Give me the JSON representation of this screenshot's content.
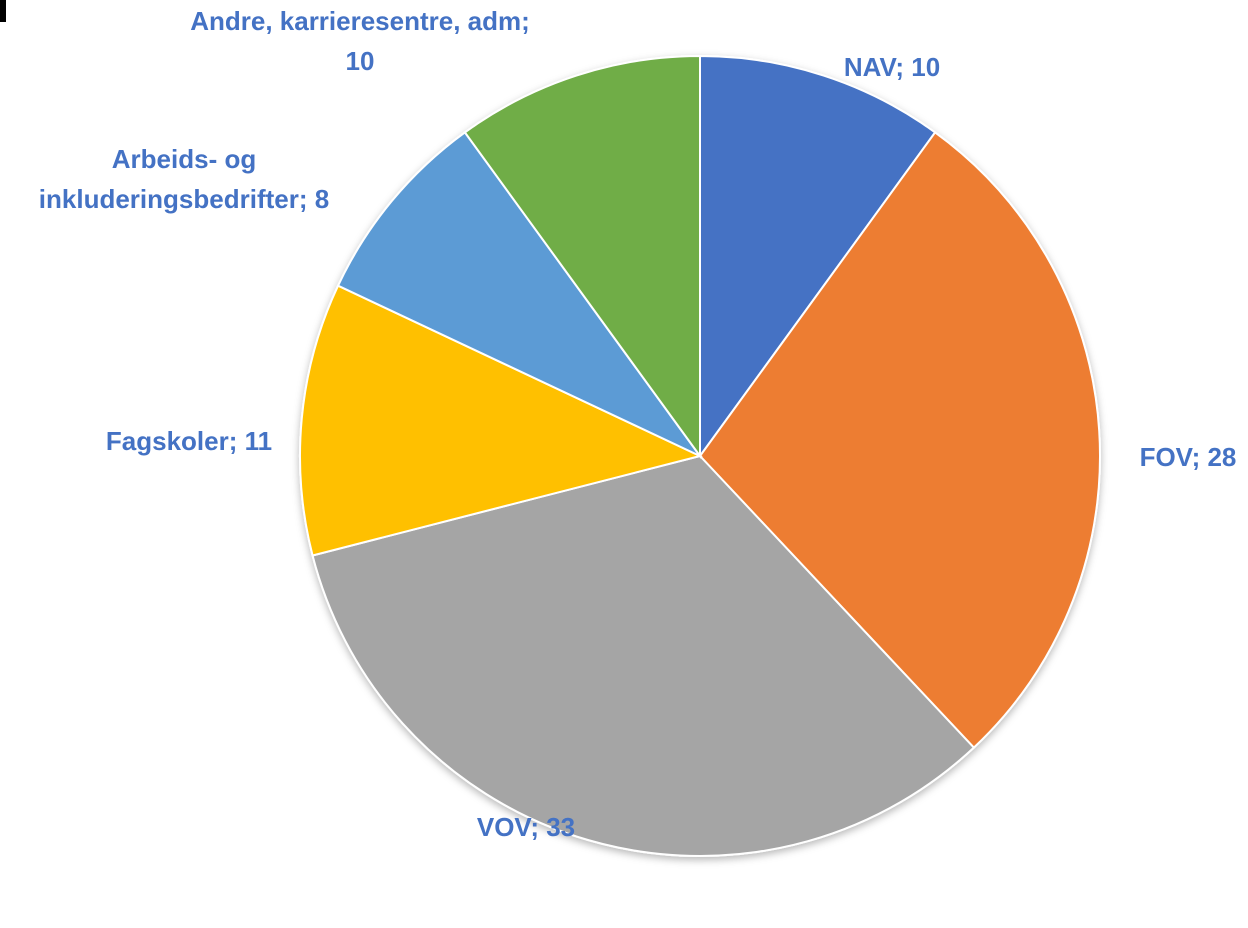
{
  "chart_data": {
    "type": "pie",
    "start_angle_deg": 0,
    "direction": "clockwise",
    "label_color": "#4472C4",
    "slices": [
      {
        "label": "NAV",
        "value": 10,
        "display": "NAV; 10",
        "color": "#4472C4"
      },
      {
        "label": "FOV",
        "value": 28,
        "display": "FOV; 28",
        "color": "#ED7D31"
      },
      {
        "label": "VOV",
        "value": 33,
        "display": "VOV; 33",
        "color": "#A5A5A5"
      },
      {
        "label": "Fagskoler",
        "value": 11,
        "display": "Fagskoler; 11",
        "color": "#FFC000"
      },
      {
        "label": "Arbeids- og inkluderingsbedrifter",
        "value": 8,
        "display": "Arbeids- og inkluderingsbedrifter; 8",
        "color": "#5B9BD5"
      },
      {
        "label": "Andre, karrieresentre, adm",
        "value": 10,
        "display": "Andre, karrieresentre, adm; 10",
        "color": "#70AD47"
      }
    ]
  }
}
